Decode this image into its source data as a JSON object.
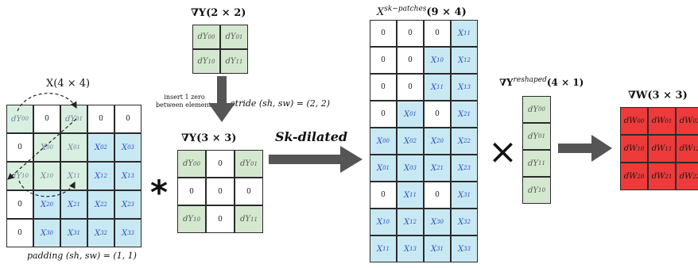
{
  "labels": {
    "x_title": "X(4 × 4)",
    "gy22_title": "∇Y(2 × 2)",
    "insert_note_1": "insert 1 zero",
    "insert_note_2": "between elements",
    "stride": "stride (sh, sw) = (2, 2)",
    "gy33_title": "∇Y(3 × 3)",
    "padding": "padding (sh, sw) = (1, 1)",
    "sk_dilated": "Sk-dilated",
    "patches_title": "X^{sk−patches}(9 × 4)",
    "reshaped_title": "∇Y^{reshaped}(4 × 1)",
    "gw_title": "∇W(3 × 3)",
    "conv_symbol": "*",
    "times_symbol": "×"
  },
  "padded_x": [
    [
      "dY00",
      "0",
      "dY01",
      "0",
      "0"
    ],
    [
      "0",
      "X00",
      "X01",
      "X02",
      "X03"
    ],
    [
      "dY10",
      "X10",
      "X11",
      "X12",
      "X13"
    ],
    [
      "0",
      "X20",
      "X21",
      "X22",
      "X23"
    ],
    [
      "0",
      "X30",
      "X31",
      "X32",
      "X33"
    ]
  ],
  "grad_y_2x2": [
    [
      "dY00",
      "dY01"
    ],
    [
      "dY10",
      "dY11"
    ]
  ],
  "grad_y_3x3": [
    [
      "dY00",
      "0",
      "dY01"
    ],
    [
      "0",
      "0",
      "0"
    ],
    [
      "dY10",
      "0",
      "dY11"
    ]
  ],
  "patches": [
    [
      "0",
      "0",
      "0",
      "X11"
    ],
    [
      "0",
      "0",
      "X10",
      "X12"
    ],
    [
      "0",
      "0",
      "X11",
      "X13"
    ],
    [
      "0",
      "X01",
      "0",
      "X21"
    ],
    [
      "X00",
      "X02",
      "X20",
      "X22"
    ],
    [
      "X01",
      "X03",
      "X21",
      "X23"
    ],
    [
      "0",
      "X11",
      "0",
      "X31"
    ],
    [
      "X10",
      "X12",
      "X30",
      "X32"
    ],
    [
      "X11",
      "X13",
      "X31",
      "X33"
    ]
  ],
  "grad_y_reshaped": [
    "dY00",
    "dY01",
    "dY11",
    "dY10"
  ],
  "grad_w": [
    [
      "dW00",
      "dW01",
      "dW02"
    ],
    [
      "dW10",
      "dW11",
      "dW12"
    ],
    [
      "dW20",
      "dW21",
      "dW22"
    ]
  ],
  "colors": {
    "green": "#d4e8cf",
    "blue": "#c8e9f3",
    "red": "#ee3a3a",
    "arrow": "#555555"
  }
}
